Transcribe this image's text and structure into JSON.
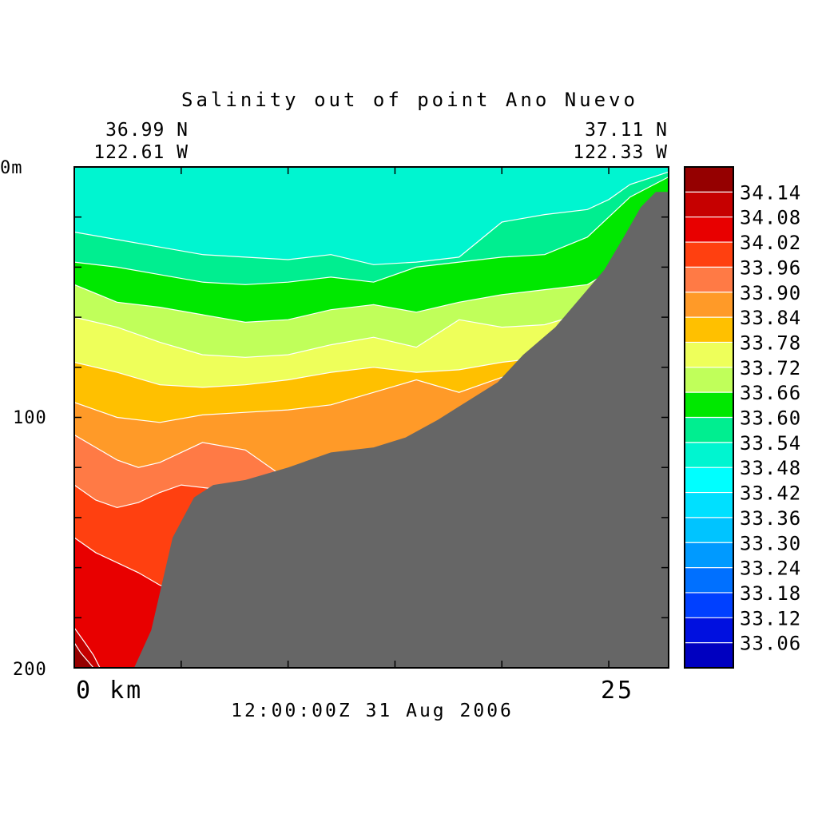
{
  "chart_data": {
    "type": "heatmap",
    "title": "Salinity out of point Ano Nuevo",
    "start_position": {
      "lat": "36.99 N",
      "lon": "122.61 W"
    },
    "end_position": {
      "lat": "37.11 N",
      "lon": "122.33 W"
    },
    "y_axis": {
      "top_label": "0m",
      "ticks": [
        "100",
        "200"
      ],
      "range": [
        0,
        200
      ],
      "inverted": true
    },
    "x_axis": {
      "ticks": [
        "0 km",
        "25"
      ],
      "range": [
        0,
        27.8
      ]
    },
    "timestamp": "12:00:00Z 31 Aug 2006",
    "colorbar": {
      "labels": [
        "34.14",
        "34.08",
        "34.02",
        "33.96",
        "33.90",
        "33.84",
        "33.78",
        "33.72",
        "33.66",
        "33.60",
        "33.54",
        "33.48",
        "33.42",
        "33.36",
        "33.30",
        "33.24",
        "33.18",
        "33.12",
        "33.06"
      ],
      "colors": [
        "#950000",
        "#c60000",
        "#e80000",
        "#ff4010",
        "#ff7a45",
        "#ff9a28",
        "#ffc000",
        "#eeff5a",
        "#c0ff5a",
        "#00e800",
        "#00ee90",
        "#00f5d0",
        "#00ffff",
        "#00e0ff",
        "#00c4ff",
        "#009aff",
        "#0070ff",
        "#0040ff",
        "#0010e0",
        "#0000c0"
      ]
    },
    "layers": [
      {
        "value": 33.51,
        "color": "#00f5d0",
        "x": [
          0,
          14,
          27.8
        ],
        "y": [
          0,
          0,
          0
        ]
      },
      {
        "value": 33.57,
        "color": "#00ee90",
        "x": [
          0,
          2,
          4,
          6,
          8,
          10,
          12,
          14,
          16,
          18,
          20,
          22,
          24,
          25,
          26,
          27.8
        ],
        "y": [
          26,
          29,
          32,
          35,
          36,
          37,
          35,
          39,
          38,
          36,
          22,
          19,
          17,
          13,
          7,
          2
        ]
      },
      {
        "value": 33.63,
        "color": "#00e800",
        "x": [
          0,
          2,
          4,
          6,
          8,
          10,
          12,
          14,
          16,
          18,
          20,
          22,
          24,
          25,
          26,
          27.8
        ],
        "y": [
          38,
          40,
          43,
          46,
          47,
          46,
          44,
          46,
          40,
          38,
          36,
          35,
          28,
          20,
          12,
          4
        ]
      },
      {
        "value": 33.69,
        "color": "#c0ff5a",
        "x": [
          0,
          2,
          4,
          6,
          8,
          10,
          12,
          14,
          16,
          18,
          20,
          22,
          24,
          25,
          26,
          27.8
        ],
        "y": [
          47,
          54,
          56,
          59,
          62,
          61,
          57,
          55,
          58,
          54,
          51,
          49,
          47,
          42,
          32,
          10
        ]
      },
      {
        "value": 33.75,
        "color": "#eeff5a",
        "x": [
          0,
          2,
          4,
          6,
          8,
          10,
          12,
          14,
          16,
          18,
          20,
          22,
          24,
          25,
          26,
          27.8
        ],
        "y": [
          60,
          64,
          70,
          75,
          76,
          75,
          71,
          68,
          72,
          61,
          64,
          63,
          58,
          55,
          50,
          20
        ]
      },
      {
        "value": 33.81,
        "color": "#ffc000",
        "x": [
          0,
          2,
          4,
          6,
          8,
          10,
          12,
          14,
          16,
          18,
          20,
          22,
          24,
          25,
          26,
          27.8
        ],
        "y": [
          78,
          82,
          87,
          88,
          87,
          85,
          82,
          80,
          82,
          81,
          78,
          76,
          72,
          66,
          60,
          30
        ]
      },
      {
        "value": 33.87,
        "color": "#ff9a28",
        "x": [
          0,
          2,
          4,
          6,
          8,
          10,
          12,
          14,
          16,
          18,
          20,
          22,
          24,
          25,
          26,
          27.8
        ],
        "y": [
          94,
          100,
          102,
          99,
          98,
          97,
          95,
          90,
          85,
          90,
          84,
          80,
          76,
          70,
          64,
          40
        ]
      },
      {
        "value": 33.93,
        "color": "#ff7a45",
        "x": [
          0,
          2,
          3,
          4,
          5,
          6,
          8,
          10,
          12,
          14,
          16,
          18,
          20,
          22,
          24,
          25,
          26,
          27.8
        ],
        "y": [
          107,
          117,
          120,
          118,
          114,
          110,
          113,
          125,
          128,
          126,
          122,
          118,
          113,
          108,
          103,
          98,
          93,
          70
        ]
      },
      {
        "value": 33.99,
        "color": "#ff4010",
        "x": [
          0,
          1,
          2,
          3,
          4,
          5,
          6,
          8,
          10,
          12,
          14,
          16,
          18,
          20,
          22,
          24,
          25,
          26,
          27.8
        ],
        "y": [
          127,
          133,
          136,
          134,
          130,
          127,
          128,
          130,
          134,
          134,
          132,
          130,
          127,
          123,
          118,
          114,
          110,
          106,
          90
        ]
      },
      {
        "value": 34.05,
        "color": "#e80000",
        "x": [
          0,
          1,
          2,
          3,
          4,
          5,
          6,
          8,
          10,
          12,
          14,
          16,
          18,
          20,
          22,
          24,
          25,
          26,
          27.8
        ],
        "y": [
          148,
          154,
          158,
          162,
          167,
          170,
          172,
          175,
          176,
          176,
          176,
          175,
          174,
          172,
          170,
          168,
          166,
          164,
          150
        ]
      },
      {
        "value": 34.11,
        "color": "#c60000",
        "x": [
          0,
          0.5,
          0.9,
          1.2,
          1.5,
          3,
          27.8
        ],
        "y": [
          184,
          190,
          195,
          200,
          202,
          202,
          202
        ]
      },
      {
        "value": 34.14,
        "color": "#950000",
        "x": [
          0,
          0.3,
          0.6,
          0.9,
          1.2,
          27.8
        ],
        "y": [
          190,
          194,
          197,
          200,
          202,
          202
        ]
      }
    ],
    "bathymetry": {
      "color": "#666666",
      "x": [
        2.8,
        3.6,
        4.6,
        5.6,
        6.5,
        8.0,
        10.0,
        12.0,
        14.0,
        15.5,
        17.0,
        18.3,
        19.8,
        21.0,
        22.5,
        23.7,
        24.8,
        25.7,
        26.5,
        27.2,
        27.8
      ],
      "y": [
        200,
        185,
        148,
        132,
        127,
        125,
        120,
        114,
        112,
        108,
        101,
        94,
        86,
        75,
        64,
        52,
        41,
        28,
        16,
        10,
        10
      ]
    }
  }
}
